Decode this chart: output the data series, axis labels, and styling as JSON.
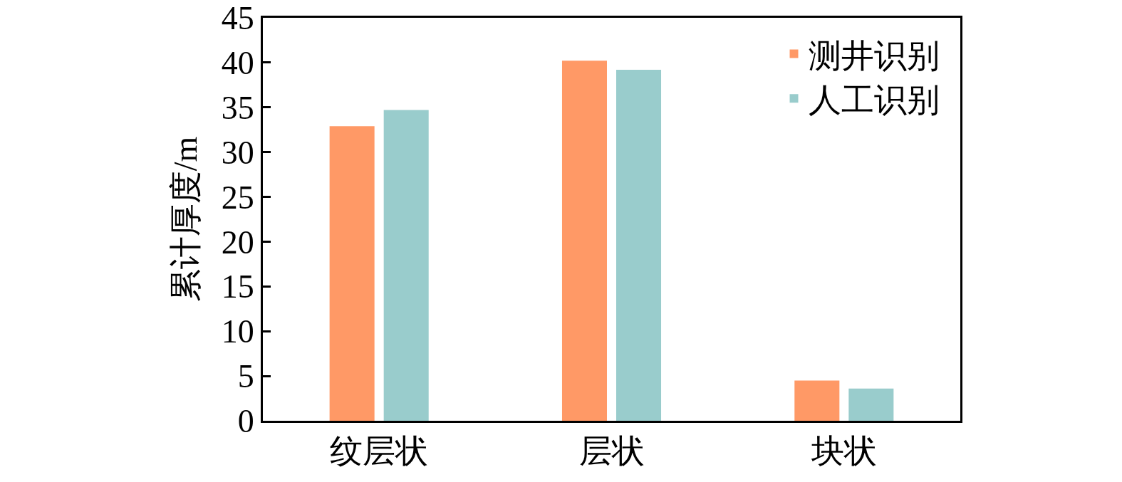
{
  "chart_data": {
    "type": "bar",
    "ylabel": "累计厚度/m",
    "categories": [
      "纹层状",
      "层状",
      "块状"
    ],
    "series": [
      {
        "name": "测井识别",
        "color": "#ff9966",
        "values": [
          32.9,
          40.2,
          4.5
        ]
      },
      {
        "name": "人工识别",
        "color": "#99cccc",
        "values": [
          34.7,
          39.2,
          3.6
        ]
      }
    ],
    "ylim": [
      0,
      45
    ],
    "yticks": [
      0,
      5,
      10,
      15,
      20,
      25,
      30,
      35,
      40,
      45
    ],
    "legend": "top right"
  }
}
